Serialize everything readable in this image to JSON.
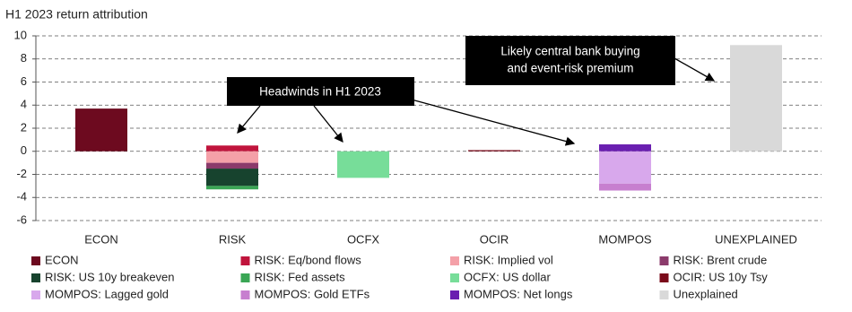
{
  "chart_data": {
    "type": "stacked_bar",
    "title": "H1 2023 return attribution",
    "categories": [
      "ECON",
      "RISK",
      "OCFX",
      "OCIR",
      "MOMPOS",
      "UNEXPLAINED"
    ],
    "series": [
      {
        "name": "ECON",
        "color": "#6d0a1f",
        "values": [
          3.7,
          null,
          null,
          null,
          null,
          null
        ]
      },
      {
        "name": "RISK: Eq/bond flows",
        "color": "#c0143c",
        "values": [
          null,
          0.5,
          null,
          null,
          null,
          null
        ]
      },
      {
        "name": "RISK: Implied vol",
        "color": "#f4a0a8",
        "values": [
          null,
          -1.0,
          null,
          null,
          null,
          null
        ]
      },
      {
        "name": "RISK: Brent crude",
        "color": "#8b3a6b",
        "values": [
          null,
          -0.5,
          null,
          null,
          null,
          null
        ]
      },
      {
        "name": "RISK: US 10y breakeven",
        "color": "#17432e",
        "values": [
          null,
          -1.5,
          null,
          null,
          null,
          null
        ]
      },
      {
        "name": "RISK: Fed assets",
        "color": "#3aa655",
        "values": [
          null,
          -0.3,
          null,
          null,
          null,
          null
        ]
      },
      {
        "name": "OCFX: US dollar",
        "color": "#77dd99",
        "values": [
          null,
          null,
          -2.3,
          null,
          null,
          null
        ]
      },
      {
        "name": "OCIR: US 10y Tsy",
        "color": "#7a0a1a",
        "values": [
          null,
          null,
          null,
          0.1,
          null,
          null
        ]
      },
      {
        "name": "MOMPOS: Lagged gold",
        "color": "#d8a8ec",
        "values": [
          null,
          null,
          null,
          null,
          -2.8,
          null
        ]
      },
      {
        "name": "MOMPOS: Gold ETFs",
        "color": "#c77fcf",
        "values": [
          null,
          null,
          null,
          null,
          -0.6,
          null
        ]
      },
      {
        "name": "MOMPOS: Net longs",
        "color": "#6a1fb0",
        "values": [
          null,
          null,
          null,
          null,
          0.6,
          null
        ]
      },
      {
        "name": "Unexplained",
        "color": "#d9d9d9",
        "values": [
          null,
          null,
          null,
          null,
          null,
          9.2
        ]
      }
    ],
    "ylim": [
      -6,
      10
    ],
    "yticks": [
      -6,
      -4,
      -2,
      0,
      2,
      4,
      6,
      8,
      10
    ],
    "grid": true,
    "annotations": [
      {
        "lines": [
          "Headwinds in H1 2023"
        ]
      },
      {
        "lines": [
          "Likely central bank buying",
          "and event-risk premium"
        ]
      }
    ]
  }
}
